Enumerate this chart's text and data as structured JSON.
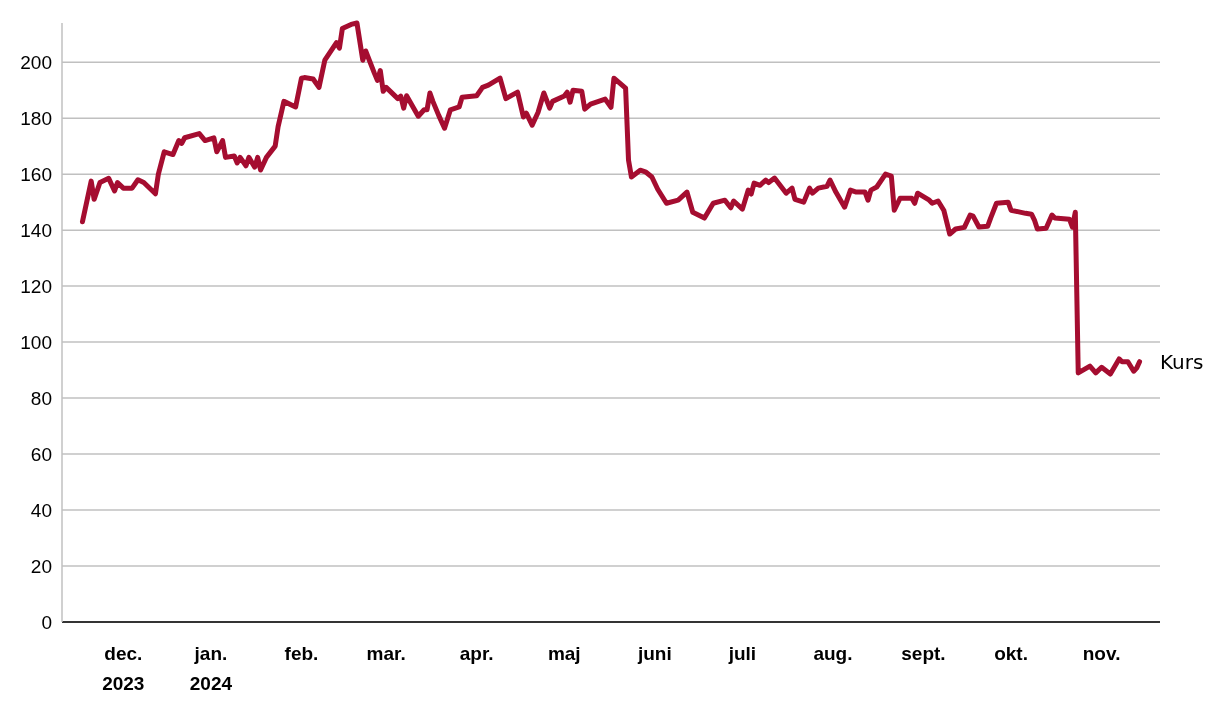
{
  "chart_data": {
    "type": "line",
    "x": [
      "2023-12-02",
      "2023-12-05",
      "2023-12-06",
      "2023-12-08",
      "2023-12-11",
      "2023-12-13",
      "2023-12-14",
      "2023-12-16",
      "2023-12-19",
      "2023-12-21",
      "2023-12-23",
      "2023-12-27",
      "2023-12-28",
      "2023-12-30",
      "2024-01-02",
      "2024-01-04",
      "2024-01-05",
      "2024-01-06",
      "2024-01-11",
      "2024-01-13",
      "2024-01-16",
      "2024-01-17",
      "2024-01-19",
      "2024-01-20",
      "2024-01-23",
      "2024-01-24",
      "2024-01-25",
      "2024-01-27",
      "2024-01-28",
      "2024-01-30",
      "2024-01-31",
      "2024-02-01",
      "2024-02-03",
      "2024-02-06",
      "2024-02-07",
      "2024-02-09",
      "2024-02-13",
      "2024-02-15",
      "2024-02-16",
      "2024-02-19",
      "2024-02-21",
      "2024-02-23",
      "2024-02-27",
      "2024-02-28",
      "2024-02-29",
      "2024-03-03",
      "2024-03-05",
      "2024-03-07",
      "2024-03-08",
      "2024-03-11",
      "2024-03-12",
      "2024-03-13",
      "2024-03-14",
      "2024-03-15",
      "2024-03-19",
      "2024-03-20",
      "2024-03-21",
      "2024-03-22",
      "2024-03-26",
      "2024-03-28",
      "2024-03-29",
      "2024-03-30",
      "2024-03-31",
      "2024-04-02",
      "2024-04-04",
      "2024-04-06",
      "2024-04-09",
      "2024-04-10",
      "2024-04-15",
      "2024-04-17",
      "2024-04-19",
      "2024-04-23",
      "2024-04-25",
      "2024-04-29",
      "2024-05-01",
      "2024-05-02",
      "2024-05-04",
      "2024-05-06",
      "2024-05-08",
      "2024-05-10",
      "2024-05-11",
      "2024-05-15",
      "2024-05-16",
      "2024-05-17",
      "2024-05-18",
      "2024-05-21",
      "2024-05-22",
      "2024-05-24",
      "2024-05-29",
      "2024-05-31",
      "2024-06-01",
      "2024-06-05",
      "2024-06-06",
      "2024-06-07",
      "2024-06-10",
      "2024-06-12",
      "2024-06-14",
      "2024-06-16",
      "2024-06-19",
      "2024-06-23",
      "2024-06-26",
      "2024-06-28",
      "2024-07-02",
      "2024-07-05",
      "2024-07-09",
      "2024-07-11",
      "2024-07-12",
      "2024-07-15",
      "2024-07-17",
      "2024-07-18",
      "2024-07-19",
      "2024-07-21",
      "2024-07-23",
      "2024-07-24",
      "2024-07-26",
      "2024-07-30",
      "2024-08-01",
      "2024-08-02",
      "2024-08-05",
      "2024-08-07",
      "2024-08-08",
      "2024-08-10",
      "2024-08-13",
      "2024-08-14",
      "2024-08-16",
      "2024-08-19",
      "2024-08-21",
      "2024-08-23",
      "2024-08-26",
      "2024-08-27",
      "2024-08-28",
      "2024-08-30",
      "2024-09-02",
      "2024-09-04",
      "2024-09-05",
      "2024-09-07",
      "2024-09-11",
      "2024-09-12",
      "2024-09-13",
      "2024-09-17",
      "2024-09-18",
      "2024-09-20",
      "2024-09-22",
      "2024-09-24",
      "2024-09-26",
      "2024-09-29",
      "2024-10-01",
      "2024-10-02",
      "2024-10-04",
      "2024-10-07",
      "2024-10-08",
      "2024-10-10",
      "2024-10-14",
      "2024-10-15",
      "2024-10-20",
      "2024-10-22",
      "2024-10-23",
      "2024-10-24",
      "2024-10-27",
      "2024-10-29",
      "2024-10-30",
      "2024-11-04",
      "2024-11-05",
      "2024-11-06",
      "2024-11-07",
      "2024-11-11",
      "2024-11-13",
      "2024-11-15",
      "2024-11-18",
      "2024-11-21",
      "2024-11-22",
      "2024-11-24",
      "2024-11-26",
      "2024-11-27",
      "2024-11-28"
    ],
    "series": [
      {
        "name": "Kurs",
        "color": "#a50d30",
        "values": [
          143,
          157.5,
          151,
          157,
          158.5,
          154,
          157,
          155,
          155,
          158,
          157,
          153,
          160,
          168,
          167,
          172,
          171,
          173,
          174.5,
          172,
          173,
          168,
          172,
          166,
          166.5,
          164,
          166,
          163,
          166,
          162.5,
          166,
          161.5,
          166,
          170,
          177,
          186,
          184,
          194.3,
          194.5,
          194,
          191,
          200.7,
          207,
          205,
          212,
          213.5,
          214,
          200.7,
          204,
          196,
          193.5,
          197,
          189.6,
          191,
          187,
          187.9,
          183.6,
          188,
          180.7,
          183,
          183,
          189,
          186,
          181,
          176.4,
          183,
          184,
          187.5,
          188,
          191,
          191.8,
          194.3,
          187,
          189.3,
          180.4,
          181.8,
          177.5,
          182,
          189,
          183.6,
          186,
          187.9,
          189.3,
          185.7,
          190,
          189.6,
          183.2,
          185,
          186.8,
          183.9,
          194.3,
          190.7,
          165,
          159,
          161.4,
          160.7,
          159,
          154.6,
          149.6,
          150.7,
          153.6,
          146.4,
          144.3,
          149.6,
          150.7,
          148,
          150.4,
          147.5,
          154.3,
          152.9,
          156.8,
          156,
          157.9,
          157,
          158.6,
          153.2,
          155,
          151,
          150,
          155,
          153.2,
          155,
          155.7,
          157.9,
          153.6,
          148.2,
          154.3,
          153.6,
          153.6,
          150.7,
          154.3,
          155.4,
          160,
          159.3,
          147.1,
          151.4,
          151.4,
          149.6,
          153.2,
          150.7,
          149.6,
          150.4,
          147,
          138.6,
          140.4,
          141,
          145.4,
          145,
          141.1,
          141.4,
          144.3,
          149.6,
          150,
          147.1,
          146,
          145.7,
          143.6,
          140.4,
          140.7,
          145.4,
          144.3,
          143.9,
          141.1,
          146.4,
          89,
          91.4,
          89,
          91,
          88.6,
          94,
          93,
          93,
          89.6,
          90.7,
          93
        ]
      }
    ],
    "xlim": [
      "2023-11-25",
      "2024-12-05"
    ],
    "xticks": [
      {
        "value": "2023-12-16",
        "label": "dec.\n2023"
      },
      {
        "value": "2024-01-15",
        "label": "jan.\n2024"
      },
      {
        "value": "2024-02-15",
        "label": "feb."
      },
      {
        "value": "2024-03-15",
        "label": "mar."
      },
      {
        "value": "2024-04-15",
        "label": "apr."
      },
      {
        "value": "2024-05-15",
        "label": "maj"
      },
      {
        "value": "2024-06-15",
        "label": "juni"
      },
      {
        "value": "2024-07-15",
        "label": "juli"
      },
      {
        "value": "2024-08-15",
        "label": "aug."
      },
      {
        "value": "2024-09-15",
        "label": "sept."
      },
      {
        "value": "2024-10-15",
        "label": "okt."
      },
      {
        "value": "2024-11-15",
        "label": "nov."
      }
    ],
    "yticks": [
      0,
      20,
      40,
      60,
      80,
      100,
      120,
      140,
      160,
      180,
      200
    ],
    "ylim": [
      0,
      214
    ],
    "grid": "y",
    "line_style": "solid"
  }
}
